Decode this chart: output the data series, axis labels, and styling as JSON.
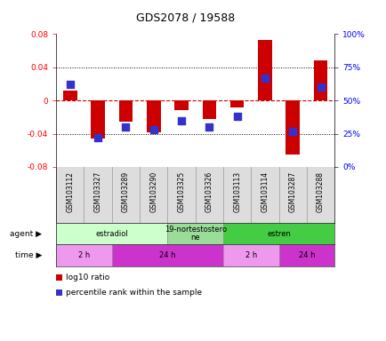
{
  "title": "GDS2078 / 19588",
  "samples": [
    "GSM103112",
    "GSM103327",
    "GSM103289",
    "GSM103290",
    "GSM103325",
    "GSM103326",
    "GSM103113",
    "GSM103114",
    "GSM103287",
    "GSM103288"
  ],
  "log10_ratio": [
    0.012,
    -0.046,
    -0.026,
    -0.038,
    -0.012,
    -0.022,
    -0.008,
    0.073,
    -0.065,
    0.048
  ],
  "percentile_rank": [
    0.62,
    0.22,
    0.3,
    0.28,
    0.35,
    0.3,
    0.38,
    0.67,
    0.27,
    0.6
  ],
  "ylim": [
    -0.08,
    0.08
  ],
  "yticks": [
    -0.08,
    -0.04,
    0.0,
    0.04,
    0.08
  ],
  "right_yticks_labels": [
    "0%",
    "25%",
    "50%",
    "75%",
    "100%"
  ],
  "right_ytick_vals": [
    -0.08,
    -0.04,
    0.0,
    0.04,
    0.08
  ],
  "pct_min": 0.0,
  "pct_max": 1.0,
  "bar_color": "#cc0000",
  "dot_color": "#3333cc",
  "bar_width": 0.5,
  "dot_size": 28,
  "agent_groups": [
    {
      "label": "estradiol",
      "start": 0,
      "end": 4,
      "color": "#ccffcc"
    },
    {
      "label": "19-nortestostero\nne",
      "start": 4,
      "end": 6,
      "color": "#99dd99"
    },
    {
      "label": "estren",
      "start": 6,
      "end": 10,
      "color": "#44cc44"
    }
  ],
  "time_groups": [
    {
      "label": "2 h",
      "start": 0,
      "end": 2,
      "color": "#ee99ee"
    },
    {
      "label": "24 h",
      "start": 2,
      "end": 6,
      "color": "#cc33cc"
    },
    {
      "label": "2 h",
      "start": 6,
      "end": 8,
      "color": "#ee99ee"
    },
    {
      "label": "24 h",
      "start": 8,
      "end": 10,
      "color": "#cc33cc"
    }
  ],
  "legend_bar_label": "log10 ratio",
  "legend_dot_label": "percentile rank within the sample",
  "agent_label": "agent",
  "time_label": "time",
  "zero_line_color": "#cc0000",
  "dotted_line_color": "#000000",
  "bg_color": "#ffffff"
}
